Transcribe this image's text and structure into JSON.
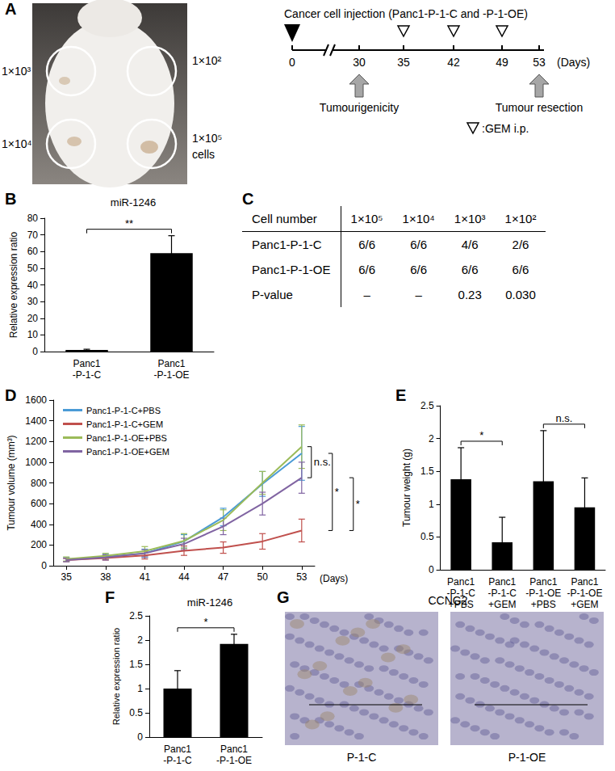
{
  "panel_a": {
    "label": "A",
    "cell_numbers": [
      "1×10³",
      "1×10²",
      "1×10⁴",
      "1×10⁵"
    ],
    "cells_label": "cells",
    "timeline": {
      "title": "Cancer cell injection (Panc1-P-1-C and -P-1-OE)",
      "days": [
        0,
        30,
        35,
        42,
        49,
        53
      ],
      "unit": "(Days)",
      "events": [
        {
          "day": 30,
          "label": "Tumourigenicity"
        },
        {
          "day": 53,
          "label": "Tumour resection"
        }
      ],
      "gem_days": [
        35,
        42,
        49
      ],
      "gem_label": ":GEM i.p."
    }
  },
  "chart_data": [
    {
      "panel": "B",
      "type": "bar",
      "title": "miR-1246",
      "ylabel": "Relative expression ratio",
      "categories": [
        "Panc1\n-P-1-C",
        "Panc1\n-P-1-OE"
      ],
      "values": [
        1,
        59
      ],
      "errors": [
        0.4,
        10.5
      ],
      "color": "#000000",
      "ylim": [
        0,
        80
      ],
      "yticks": [
        0,
        10,
        20,
        30,
        40,
        50,
        60,
        70,
        80
      ],
      "grid": false,
      "comparisons": [
        {
          "pair": [
            "Panc1\n-P-1-C",
            "Panc1\n-P-1-OE"
          ],
          "label": "**"
        }
      ]
    },
    {
      "panel": "D",
      "type": "line",
      "ylabel": "Tumour volume (mm³)",
      "xlabel": "(Days)",
      "x": [
        35,
        38,
        41,
        44,
        47,
        50,
        53
      ],
      "xlim": [
        34,
        54
      ],
      "xticks": [
        35,
        38,
        41,
        44,
        47,
        50,
        53
      ],
      "ylim": [
        0,
        1600
      ],
      "yticks": [
        0,
        200,
        400,
        600,
        800,
        1000,
        1200,
        1400,
        1600
      ],
      "grid": false,
      "legend": "upper left",
      "marker": "none",
      "series": [
        {
          "name": "Panc1-P-1-C+PBS",
          "color": "#4a9bd6",
          "values": [
            60,
            85,
            120,
            235,
            470,
            790,
            1085
          ],
          "errors": [
            20,
            25,
            40,
            65,
            85,
            120,
            260
          ]
        },
        {
          "name": "Panc1-P-1-C+GEM",
          "color": "#c0504d",
          "values": [
            55,
            75,
            100,
            145,
            175,
            235,
            340
          ],
          "errors": [
            15,
            20,
            35,
            45,
            55,
            75,
            110
          ]
        },
        {
          "name": "Panc1-P-1-OE+PBS",
          "color": "#9bbb59",
          "values": [
            65,
            95,
            140,
            240,
            440,
            800,
            1150
          ],
          "errors": [
            20,
            25,
            45,
            70,
            100,
            110,
            210
          ]
        },
        {
          "name": "Panc1-P-1-OE+GEM",
          "color": "#8064a2",
          "values": [
            55,
            80,
            120,
            210,
            380,
            600,
            850
          ],
          "errors": [
            15,
            25,
            35,
            55,
            80,
            110,
            150
          ]
        }
      ],
      "comparisons": [
        {
          "pair": [
            "Panc1-P-1-OE+PBS",
            "Panc1-P-1-OE+GEM"
          ],
          "label": "n.s."
        },
        {
          "pair": [
            "Panc1-P-1-C+PBS",
            "Panc1-P-1-C+GEM"
          ],
          "label": "*"
        },
        {
          "pair": [
            "Panc1-P-1-OE+GEM",
            "Panc1-P-1-C+GEM"
          ],
          "label": "*"
        }
      ]
    },
    {
      "panel": "E",
      "type": "bar",
      "ylabel": "Tumour weight (g)",
      "categories": [
        "Panc1\n-P-1-C\n+PBS",
        "Panc1\n-P-1-C\n+GEM",
        "Panc1\n-P-1-OE\n+PBS",
        "Panc1\n-P-1-OE\n+GEM"
      ],
      "values": [
        1.38,
        0.42,
        1.35,
        0.95
      ],
      "errors": [
        0.48,
        0.38,
        0.77,
        0.45
      ],
      "color": "#000000",
      "ylim": [
        0,
        2.5
      ],
      "yticks": [
        0,
        0.5,
        1,
        1.5,
        2,
        2.5
      ],
      "grid": false,
      "comparisons": [
        {
          "pair": [
            "Panc1\n-P-1-C\n+PBS",
            "Panc1\n-P-1-C\n+GEM"
          ],
          "label": "*"
        },
        {
          "pair": [
            "Panc1\n-P-1-OE\n+PBS",
            "Panc1\n-P-1-OE\n+GEM"
          ],
          "label": "n.s."
        }
      ]
    },
    {
      "panel": "F",
      "type": "bar",
      "title": "miR-1246",
      "ylabel": "Relative expression ratio",
      "categories": [
        "Panc1\n-P-1-C",
        "Panc1\n-P-1-OE"
      ],
      "values": [
        1,
        1.92
      ],
      "errors": [
        0.37,
        0.2
      ],
      "color": "#000000",
      "ylim": [
        0,
        2.5
      ],
      "yticks": [
        0,
        0.5,
        1,
        1.5,
        2,
        2.5
      ],
      "grid": false,
      "comparisons": [
        {
          "pair": [
            "Panc1\n-P-1-C",
            "Panc1\n-P-1-OE"
          ],
          "label": "*"
        }
      ]
    }
  ],
  "panel_c": {
    "label": "C",
    "header": [
      "Cell number",
      "1×10⁵",
      "1×10⁴",
      "1×10³",
      "1×10²"
    ],
    "rows": [
      [
        "Panc1-P-1-C",
        "6/6",
        "6/6",
        "4/6",
        "2/6"
      ],
      [
        "Panc1-P-1-OE",
        "6/6",
        "6/6",
        "6/6",
        "6/6"
      ],
      [
        "P-value",
        "–",
        "–",
        "0.23",
        "0.030"
      ]
    ]
  },
  "panel_g": {
    "label": "G",
    "title": "CCNG2",
    "images": [
      "P-1-C",
      "P-1-OE"
    ]
  }
}
